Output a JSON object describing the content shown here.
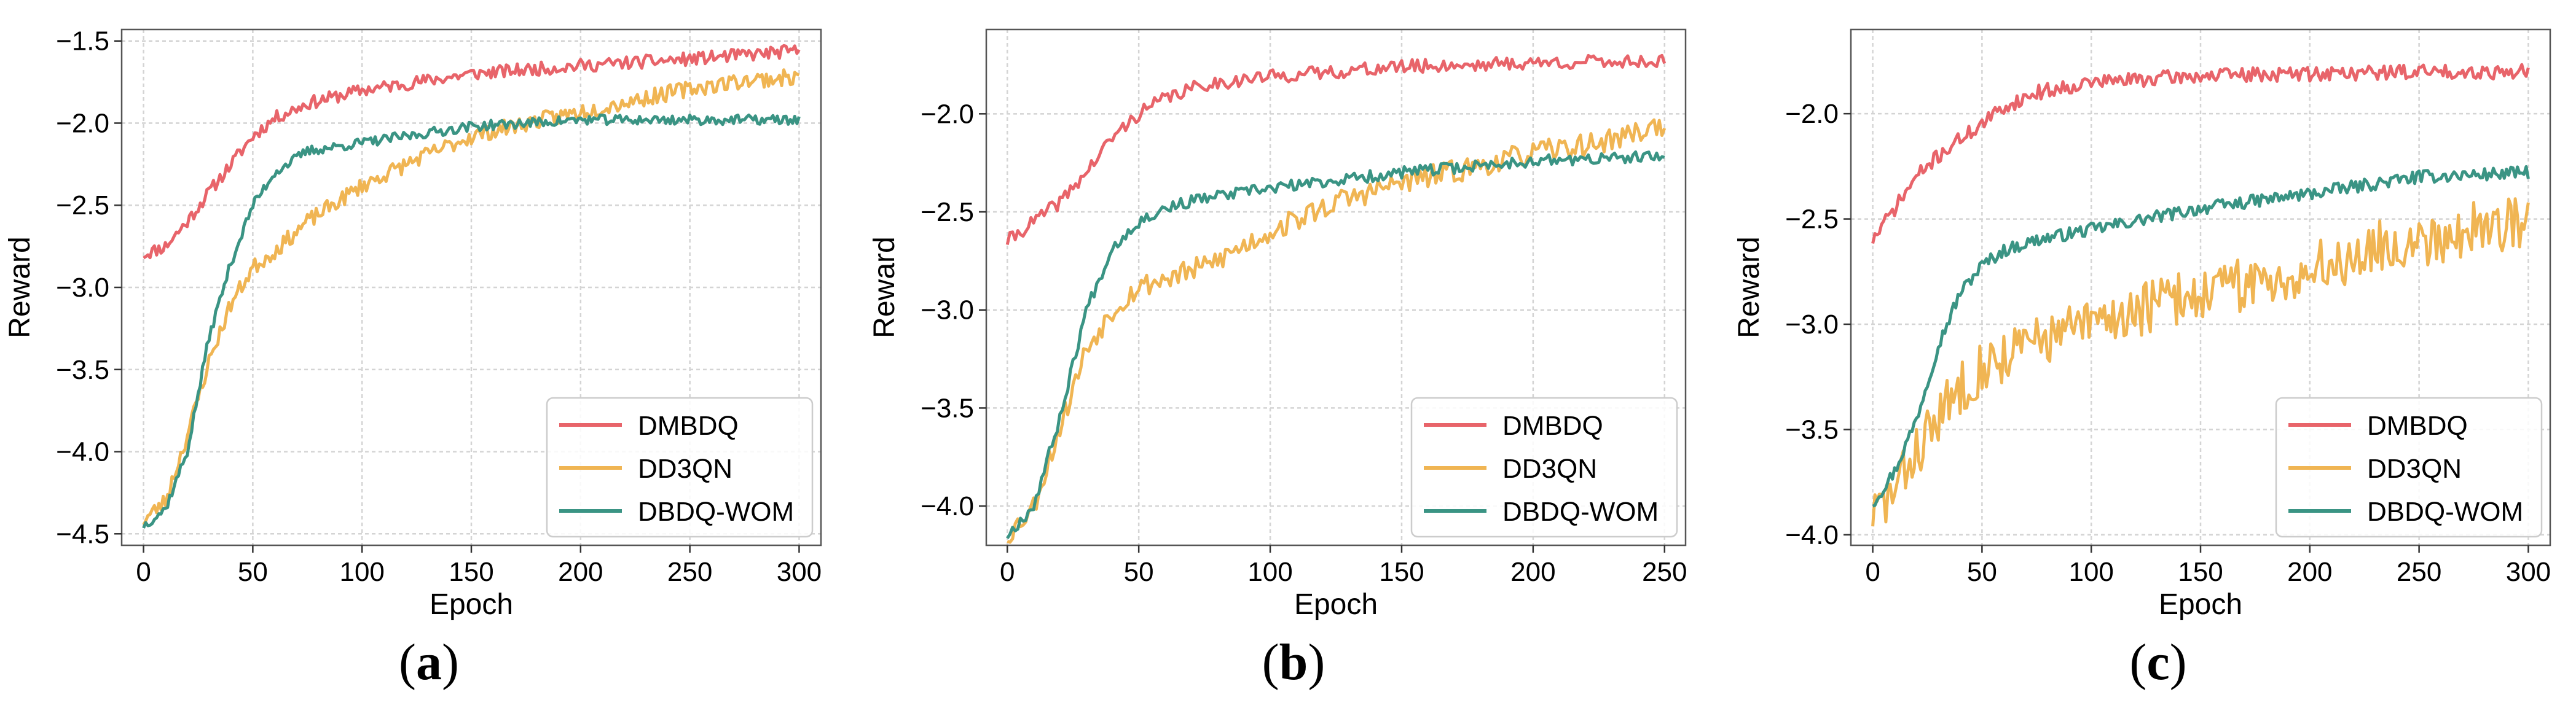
{
  "colors": {
    "DMBDQ": "#e8646a",
    "DD3QN": "#f0b553",
    "DBDQ-WOM": "#3a9484",
    "grid": "#d4d4d4",
    "axis": "#000000"
  },
  "chart_data": [
    {
      "type": "line",
      "panel_label": "a",
      "title": "",
      "xlabel": "Epoch",
      "ylabel": "Reward",
      "xlim": [
        -10,
        310
      ],
      "ylim": [
        -4.57,
        -1.43
      ],
      "xticks": [
        0,
        50,
        100,
        150,
        200,
        250,
        300
      ],
      "yticks": [
        -4.5,
        -4.0,
        -3.5,
        -3.0,
        -2.5,
        -2.0,
        -1.5
      ],
      "ytick_labels": [
        "−4.5",
        "−4.0",
        "−3.5",
        "−3.0",
        "−2.5",
        "−2.0",
        "−1.5"
      ],
      "grid": true,
      "legend_position": "lower-right",
      "x_max": 300,
      "series": [
        {
          "name": "DMBDQ",
          "color_key": "DMBDQ",
          "noise": 0.04,
          "seed": 11,
          "keypoints": [
            [
              0,
              -2.8
            ],
            [
              10,
              -2.75
            ],
            [
              20,
              -2.6
            ],
            [
              30,
              -2.42
            ],
            [
              40,
              -2.25
            ],
            [
              50,
              -2.08
            ],
            [
              60,
              -1.97
            ],
            [
              75,
              -1.88
            ],
            [
              100,
              -1.8
            ],
            [
              150,
              -1.7
            ],
            [
              200,
              -1.65
            ],
            [
              250,
              -1.61
            ],
            [
              300,
              -1.56
            ]
          ]
        },
        {
          "name": "DD3QN",
          "color_key": "DD3QN",
          "noise": 0.05,
          "seed": 23,
          "keypoints": [
            [
              0,
              -4.42
            ],
            [
              10,
              -4.3
            ],
            [
              20,
              -3.9
            ],
            [
              30,
              -3.45
            ],
            [
              40,
              -3.1
            ],
            [
              50,
              -2.88
            ],
            [
              60,
              -2.78
            ],
            [
              75,
              -2.6
            ],
            [
              100,
              -2.38
            ],
            [
              125,
              -2.22
            ],
            [
              150,
              -2.08
            ],
            [
              175,
              -2.0
            ],
            [
              200,
              -1.93
            ],
            [
              225,
              -1.86
            ],
            [
              250,
              -1.79
            ],
            [
              275,
              -1.74
            ],
            [
              300,
              -1.72
            ]
          ]
        },
        {
          "name": "DBDQ-WOM",
          "color_key": "DBDQ-WOM",
          "noise": 0.03,
          "seed": 37,
          "keypoints": [
            [
              0,
              -4.45
            ],
            [
              10,
              -4.35
            ],
            [
              20,
              -4.0
            ],
            [
              30,
              -3.3
            ],
            [
              40,
              -2.85
            ],
            [
              50,
              -2.5
            ],
            [
              60,
              -2.3
            ],
            [
              75,
              -2.17
            ],
            [
              100,
              -2.12
            ],
            [
              150,
              -2.02
            ],
            [
              200,
              -1.98
            ],
            [
              250,
              -1.98
            ],
            [
              300,
              -1.98
            ]
          ]
        }
      ]
    },
    {
      "type": "line",
      "panel_label": "b",
      "title": "",
      "xlabel": "Epoch",
      "ylabel": "Reward",
      "xlim": [
        -8,
        258
      ],
      "ylim": [
        -4.2,
        -1.57
      ],
      "xticks": [
        0,
        50,
        100,
        150,
        200,
        250
      ],
      "yticks": [
        -4.0,
        -3.5,
        -3.0,
        -2.5,
        -2.0
      ],
      "ytick_labels": [
        "−4.0",
        "−3.5",
        "−3.0",
        "−2.5",
        "−2.0"
      ],
      "grid": true,
      "legend_position": "lower-right",
      "x_max": 250,
      "series": [
        {
          "name": "DMBDQ",
          "color_key": "DMBDQ",
          "noise": 0.035,
          "seed": 41,
          "keypoints": [
            [
              0,
              -2.65
            ],
            [
              10,
              -2.55
            ],
            [
              20,
              -2.45
            ],
            [
              30,
              -2.3
            ],
            [
              40,
              -2.12
            ],
            [
              50,
              -2.0
            ],
            [
              60,
              -1.92
            ],
            [
              75,
              -1.85
            ],
            [
              100,
              -1.81
            ],
            [
              150,
              -1.76
            ],
            [
              200,
              -1.74
            ],
            [
              250,
              -1.73
            ]
          ]
        },
        {
          "name": "DD3QN",
          "color_key": "DD3QN",
          "noise": 0.06,
          "seed": 53,
          "keypoints": [
            [
              0,
              -4.15
            ],
            [
              10,
              -4.0
            ],
            [
              20,
              -3.6
            ],
            [
              30,
              -3.2
            ],
            [
              40,
              -3.0
            ],
            [
              50,
              -2.88
            ],
            [
              75,
              -2.78
            ],
            [
              100,
              -2.6
            ],
            [
              125,
              -2.45
            ],
            [
              150,
              -2.35
            ],
            [
              175,
              -2.28
            ],
            [
              200,
              -2.2
            ],
            [
              225,
              -2.15
            ],
            [
              250,
              -2.05
            ]
          ]
        },
        {
          "name": "DBDQ-WOM",
          "color_key": "DBDQ-WOM",
          "noise": 0.03,
          "seed": 67,
          "keypoints": [
            [
              0,
              -4.15
            ],
            [
              10,
              -4.0
            ],
            [
              20,
              -3.55
            ],
            [
              30,
              -3.0
            ],
            [
              40,
              -2.68
            ],
            [
              50,
              -2.55
            ],
            [
              60,
              -2.48
            ],
            [
              75,
              -2.43
            ],
            [
              100,
              -2.38
            ],
            [
              150,
              -2.3
            ],
            [
              200,
              -2.24
            ],
            [
              250,
              -2.22
            ]
          ]
        }
      ]
    },
    {
      "type": "line",
      "panel_label": "c",
      "title": "",
      "xlabel": "Epoch",
      "ylabel": "Reward",
      "xlim": [
        -10,
        310
      ],
      "ylim": [
        -4.05,
        -1.6
      ],
      "xticks": [
        0,
        50,
        100,
        150,
        200,
        250,
        300
      ],
      "yticks": [
        -4.0,
        -3.5,
        -3.0,
        -2.5,
        -2.0
      ],
      "ytick_labels": [
        "−4.0",
        "−3.5",
        "−3.0",
        "−2.5",
        "−2.0"
      ],
      "grid": true,
      "legend_position": "lower-right",
      "x_max": 300,
      "series": [
        {
          "name": "DMBDQ",
          "color_key": "DMBDQ",
          "noise": 0.035,
          "seed": 71,
          "keypoints": [
            [
              0,
              -2.6
            ],
            [
              10,
              -2.45
            ],
            [
              20,
              -2.3
            ],
            [
              30,
              -2.2
            ],
            [
              40,
              -2.12
            ],
            [
              50,
              -2.05
            ],
            [
              60,
              -1.97
            ],
            [
              75,
              -1.9
            ],
            [
              100,
              -1.85
            ],
            [
              150,
              -1.82
            ],
            [
              200,
              -1.81
            ],
            [
              250,
              -1.8
            ],
            [
              300,
              -1.8
            ]
          ]
        },
        {
          "name": "DD3QN",
          "color_key": "DD3QN",
          "noise": 0.13,
          "seed": 83,
          "keypoints": [
            [
              0,
              -3.9
            ],
            [
              10,
              -3.8
            ],
            [
              20,
              -3.6
            ],
            [
              30,
              -3.45
            ],
            [
              40,
              -3.3
            ],
            [
              50,
              -3.2
            ],
            [
              75,
              -3.08
            ],
            [
              100,
              -3.0
            ],
            [
              125,
              -2.92
            ],
            [
              150,
              -2.85
            ],
            [
              175,
              -2.8
            ],
            [
              200,
              -2.75
            ],
            [
              225,
              -2.65
            ],
            [
              250,
              -2.6
            ],
            [
              275,
              -2.55
            ],
            [
              300,
              -2.5
            ]
          ]
        },
        {
          "name": "DBDQ-WOM",
          "color_key": "DBDQ-WOM",
          "noise": 0.03,
          "seed": 97,
          "keypoints": [
            [
              0,
              -3.85
            ],
            [
              10,
              -3.7
            ],
            [
              20,
              -3.45
            ],
            [
              30,
              -3.1
            ],
            [
              40,
              -2.85
            ],
            [
              50,
              -2.72
            ],
            [
              60,
              -2.65
            ],
            [
              75,
              -2.6
            ],
            [
              100,
              -2.55
            ],
            [
              150,
              -2.45
            ],
            [
              200,
              -2.38
            ],
            [
              250,
              -2.3
            ],
            [
              300,
              -2.28
            ]
          ]
        }
      ]
    }
  ]
}
